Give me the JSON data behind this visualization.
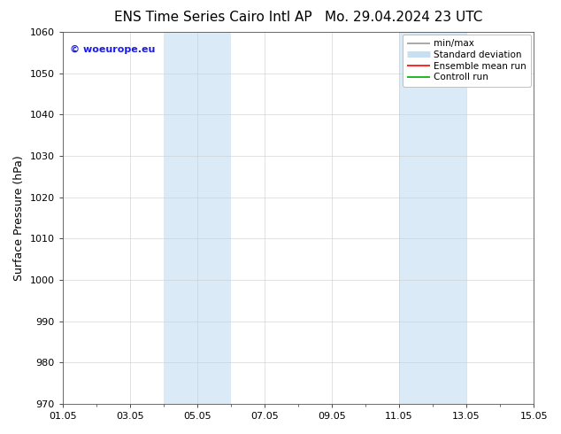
{
  "title_left": "ENS Time Series Cairo Intl AP",
  "title_right": "Mo. 29.04.2024 23 UTC",
  "ylabel": "Surface Pressure (hPa)",
  "ylim": [
    970,
    1060
  ],
  "yticks": [
    970,
    980,
    990,
    1000,
    1010,
    1020,
    1030,
    1040,
    1050,
    1060
  ],
  "xlim": [
    0,
    14
  ],
  "xtick_labels": [
    "01.05",
    "03.05",
    "05.05",
    "07.05",
    "09.05",
    "11.05",
    "13.05",
    "15.05"
  ],
  "xtick_positions": [
    0,
    2,
    4,
    6,
    8,
    10,
    12,
    14
  ],
  "shaded_bands": [
    {
      "start": 3,
      "end": 5
    },
    {
      "start": 10,
      "end": 12
    }
  ],
  "band_color": "#daeaf7",
  "background_color": "#ffffff",
  "watermark_text": "© woeurope.eu",
  "watermark_color": "#1a1aee",
  "legend_entries": [
    {
      "label": "min/max",
      "color": "#999999",
      "lw": 1.2,
      "linestyle": "-"
    },
    {
      "label": "Standard deviation",
      "color": "#c8dff0",
      "lw": 5,
      "linestyle": "-"
    },
    {
      "label": "Ensemble mean run",
      "color": "#ff0000",
      "lw": 1.2,
      "linestyle": "-"
    },
    {
      "label": "Controll run",
      "color": "#00aa00",
      "lw": 1.2,
      "linestyle": "-"
    }
  ],
  "title_fontsize": 11,
  "tick_fontsize": 8,
  "ylabel_fontsize": 9,
  "legend_fontsize": 7.5,
  "watermark_fontsize": 8
}
